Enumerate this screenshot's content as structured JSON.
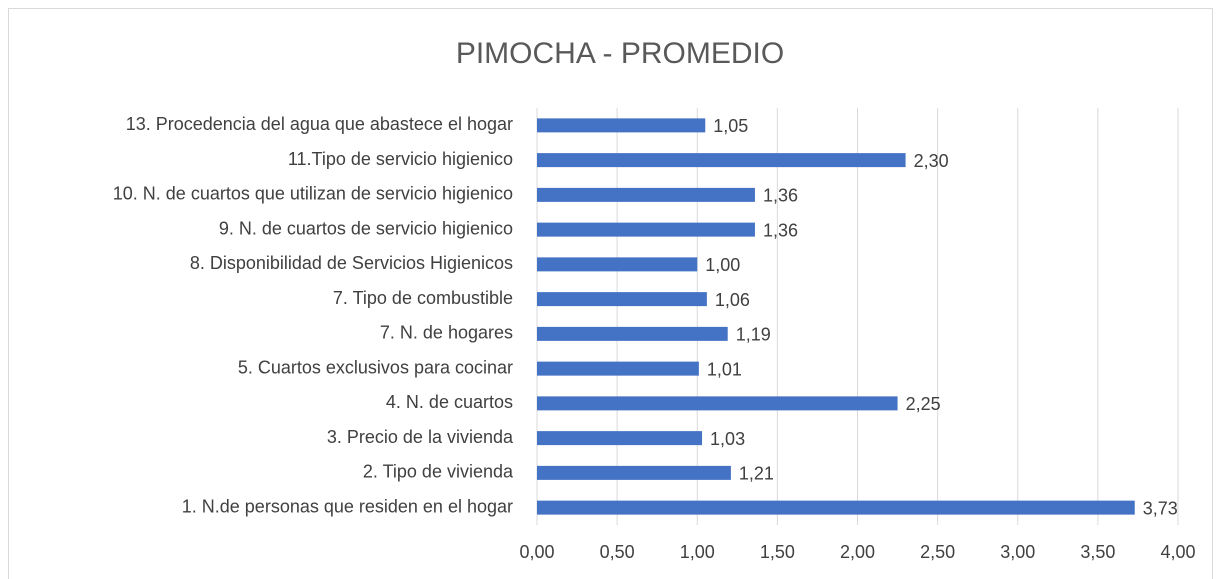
{
  "chart_data": {
    "type": "barh",
    "title": "PIMOCHA - PROMEDIO",
    "categories": [
      "13. Procedencia del agua que abastece el hogar",
      "11.Tipo de servicio higienico",
      "10. N. de cuartos que utilizan de servicio higienico",
      "9. N. de cuartos de servicio higienico",
      "8. Disponibilidad de Servicios Higienicos",
      "7. Tipo de combustible",
      "7. N. de hogares",
      "5. Cuartos exclusivos para cocinar",
      "4. N. de cuartos",
      "3. Precio de la vivienda",
      "2. Tipo de vivienda",
      "1. N.de personas que residen en el hogar"
    ],
    "values": [
      1.05,
      2.3,
      1.36,
      1.36,
      1.0,
      1.06,
      1.19,
      1.01,
      2.25,
      1.03,
      1.21,
      3.73
    ],
    "value_labels": [
      "1,05",
      "2,30",
      "1,36",
      "1,36",
      "1,00",
      "1,06",
      "1,19",
      "1,01",
      "2,25",
      "1,03",
      "1,21",
      "3,73"
    ],
    "color": "#4472c4",
    "xlim": [
      0,
      4
    ],
    "xticks": [
      {
        "value": 0,
        "label": "0,00"
      },
      {
        "value": 0.5,
        "label": "0,50"
      },
      {
        "value": 1,
        "label": "1,00"
      },
      {
        "value": 1.5,
        "label": "1,50"
      },
      {
        "value": 2,
        "label": "2,00"
      },
      {
        "value": 2.5,
        "label": "2,50"
      },
      {
        "value": 3,
        "label": "3,00"
      },
      {
        "value": 3.5,
        "label": "3,50"
      },
      {
        "value": 4,
        "label": "4,00"
      }
    ],
    "grid": true
  }
}
